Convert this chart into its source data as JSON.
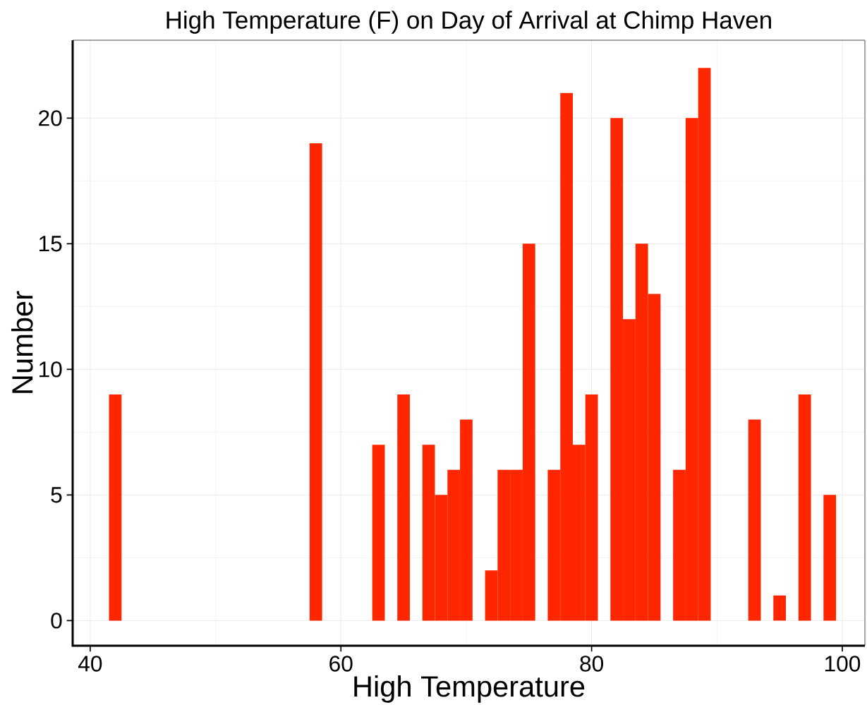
{
  "chart_data": {
    "type": "histogram",
    "title": "High Temperature (F) on Day of Arrival at Chimp Haven",
    "xlabel": "High Temperature",
    "ylabel": "Number",
    "bins": [
      41.5,
      42.5,
      43.5,
      44.5,
      45.5,
      46.5,
      47.5,
      48.5,
      49.5,
      50.5,
      51.5,
      52.5,
      53.5,
      54.5,
      55.5,
      56.5,
      57.5,
      58.5,
      59.5,
      60.5,
      61.5,
      62.5,
      63.5,
      64.5,
      65.5,
      66.5,
      67.5,
      68.5,
      69.5,
      70.5,
      71.5,
      72.5,
      73.5,
      74.5,
      75.5,
      76.5,
      77.5,
      78.5,
      79.5,
      80.5,
      81.5,
      82.5,
      83.5,
      84.5,
      85.5,
      86.5,
      87.5,
      88.5,
      89.5,
      90.5,
      91.5,
      92.5,
      93.5,
      94.5,
      95.5,
      96.5,
      97.5,
      98.5,
      99.5
    ],
    "values": [
      9,
      0,
      0,
      0,
      0,
      0,
      0,
      0,
      0,
      0,
      0,
      0,
      0,
      0,
      0,
      0,
      19,
      0,
      0,
      0,
      0,
      7,
      0,
      9,
      0,
      7,
      5,
      6,
      8,
      0,
      2,
      6,
      6,
      15,
      0,
      6,
      21,
      7,
      9,
      0,
      20,
      12,
      15,
      13,
      0,
      6,
      20,
      22,
      0,
      0,
      0,
      8,
      0,
      1,
      0,
      9,
      0,
      5
    ],
    "color": "#ff2600",
    "xlim": [
      38.6,
      101.8
    ],
    "ylim": [
      -1,
      23.1
    ],
    "xticks": [
      40,
      60,
      80,
      100
    ],
    "yticks": [
      0,
      5,
      10,
      15,
      20
    ],
    "grid": true
  }
}
